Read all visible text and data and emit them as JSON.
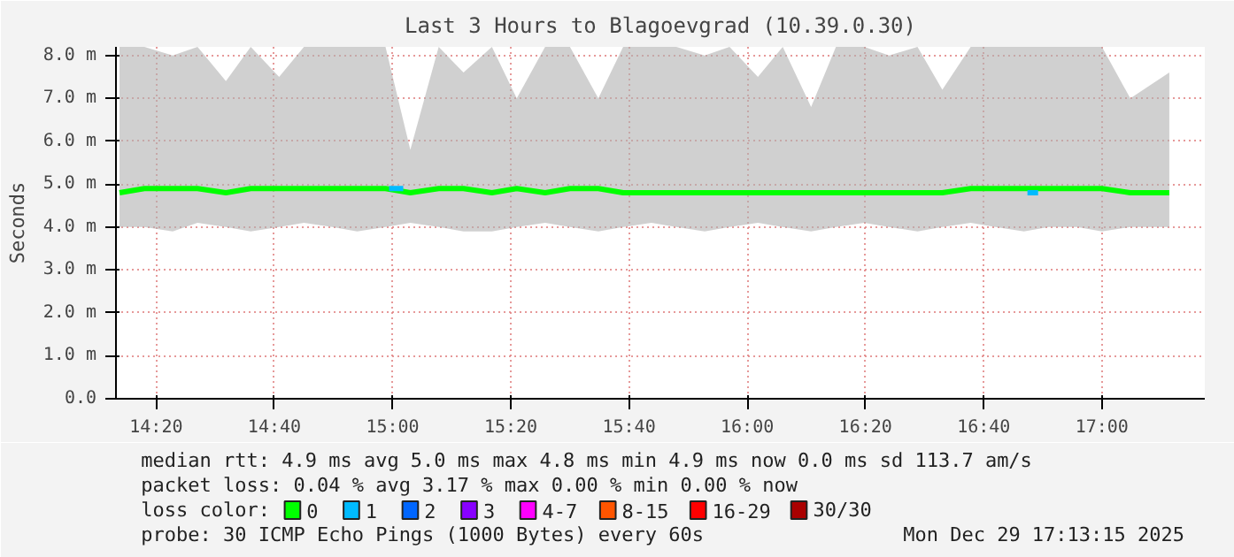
{
  "chart_data": {
    "type": "line",
    "title": "Last 3 Hours to Blagoevgrad (10.39.0.30)",
    "ylabel": "Seconds",
    "xlim": [
      14.22,
      17.29
    ],
    "ylim": [
      0,
      8.2
    ],
    "xticks": [
      {
        "value": 14.3333,
        "label": "14:20"
      },
      {
        "value": 14.6667,
        "label": "14:40"
      },
      {
        "value": 15,
        "label": "15:00"
      },
      {
        "value": 15.3333,
        "label": "15:20"
      },
      {
        "value": 15.6667,
        "label": "15:40"
      },
      {
        "value": 16,
        "label": "16:00"
      },
      {
        "value": 16.3333,
        "label": "16:20"
      },
      {
        "value": 16.6667,
        "label": "16:40"
      },
      {
        "value": 17,
        "label": "17:00"
      }
    ],
    "yticks": [
      {
        "value": 0,
        "label": "0.0"
      },
      {
        "value": 1,
        "label": "1.0 m"
      },
      {
        "value": 2,
        "label": "2.0 m"
      },
      {
        "value": 3,
        "label": "3.0 m"
      },
      {
        "value": 4,
        "label": "4.0 m"
      },
      {
        "value": 5,
        "label": "5.0 m"
      },
      {
        "value": 6,
        "label": "6.0 m"
      },
      {
        "value": 7,
        "label": "7.0 m"
      },
      {
        "value": 8,
        "label": "8.0 m"
      }
    ],
    "grid": true,
    "legend": "bottom",
    "legend_title": "loss color:",
    "series": [
      {
        "name": "0",
        "color": "#00ff00",
        "x": [
          14.23,
          14.3,
          14.38,
          14.45,
          14.53,
          14.6,
          14.68,
          14.75,
          14.83,
          14.9,
          14.98,
          15.05,
          15.13,
          15.2,
          15.28,
          15.35,
          15.43,
          15.5,
          15.58,
          15.65,
          15.73,
          15.8,
          15.88,
          15.95,
          16.03,
          16.1,
          16.18,
          16.25,
          16.33,
          16.4,
          16.48,
          16.55,
          16.63,
          16.7,
          16.78,
          16.85,
          16.93,
          17.0,
          17.08,
          17.19
        ],
        "values": [
          4.8,
          4.9,
          4.9,
          4.9,
          4.8,
          4.9,
          4.9,
          4.9,
          4.9,
          4.9,
          4.9,
          4.8,
          4.9,
          4.9,
          4.8,
          4.9,
          4.8,
          4.9,
          4.9,
          4.8,
          4.8,
          4.8,
          4.8,
          4.8,
          4.8,
          4.8,
          4.8,
          4.8,
          4.8,
          4.8,
          4.8,
          4.8,
          4.9,
          4.9,
          4.9,
          4.9,
          4.9,
          4.9,
          4.8,
          4.8
        ],
        "lower": [
          4.0,
          4.0,
          3.9,
          4.1,
          4.0,
          3.9,
          4.0,
          4.1,
          4.0,
          3.9,
          4.0,
          4.1,
          4.0,
          3.9,
          3.9,
          4.0,
          4.1,
          4.0,
          3.9,
          4.0,
          4.1,
          4.0,
          3.9,
          4.0,
          4.1,
          4.0,
          3.9,
          4.0,
          4.1,
          4.0,
          3.9,
          4.0,
          4.1,
          4.0,
          3.9,
          4.0,
          4.0,
          3.9,
          4.0,
          4.0
        ],
        "upper": [
          8.2,
          8.2,
          8.0,
          8.2,
          7.4,
          8.2,
          7.5,
          8.2,
          8.2,
          8.2,
          8.2,
          5.8,
          8.2,
          7.6,
          8.2,
          7.0,
          8.2,
          8.2,
          7.0,
          8.2,
          8.2,
          8.2,
          8.0,
          8.2,
          7.5,
          8.2,
          6.8,
          8.2,
          8.2,
          8.0,
          8.2,
          7.2,
          8.2,
          8.2,
          8.2,
          8.2,
          8.2,
          8.2,
          7.0,
          7.6
        ]
      },
      {
        "name": "1",
        "color": "#00bbff",
        "x": [
          14.99,
          15.03,
          15.04,
          16.79,
          16.82
        ],
        "values": [
          4.9,
          4.9,
          null,
          4.8,
          4.8
        ]
      },
      {
        "name": "2",
        "color": "#0066ff"
      },
      {
        "name": "3",
        "color": "#8800ff"
      },
      {
        "name": "4-7",
        "color": "#ff00ff"
      },
      {
        "name": "8-15",
        "color": "#ff5500"
      },
      {
        "name": "16-29",
        "color": "#ff0000"
      },
      {
        "name": "30/30",
        "color": "#aa0000"
      }
    ],
    "annotations": [
      "median rtt:  4.9 ms avg  5.0 ms max  4.8 ms min  4.9 ms now  0.0 ms sd  113.7   am/s",
      "packet loss: 0.04 % avg  3.17 % max  0.00 % min  0.00 % now",
      "probe:       30 ICMP Echo Pings (1000 Bytes) every 60s",
      "Mon Dec 29 17:13:15 2025"
    ]
  }
}
